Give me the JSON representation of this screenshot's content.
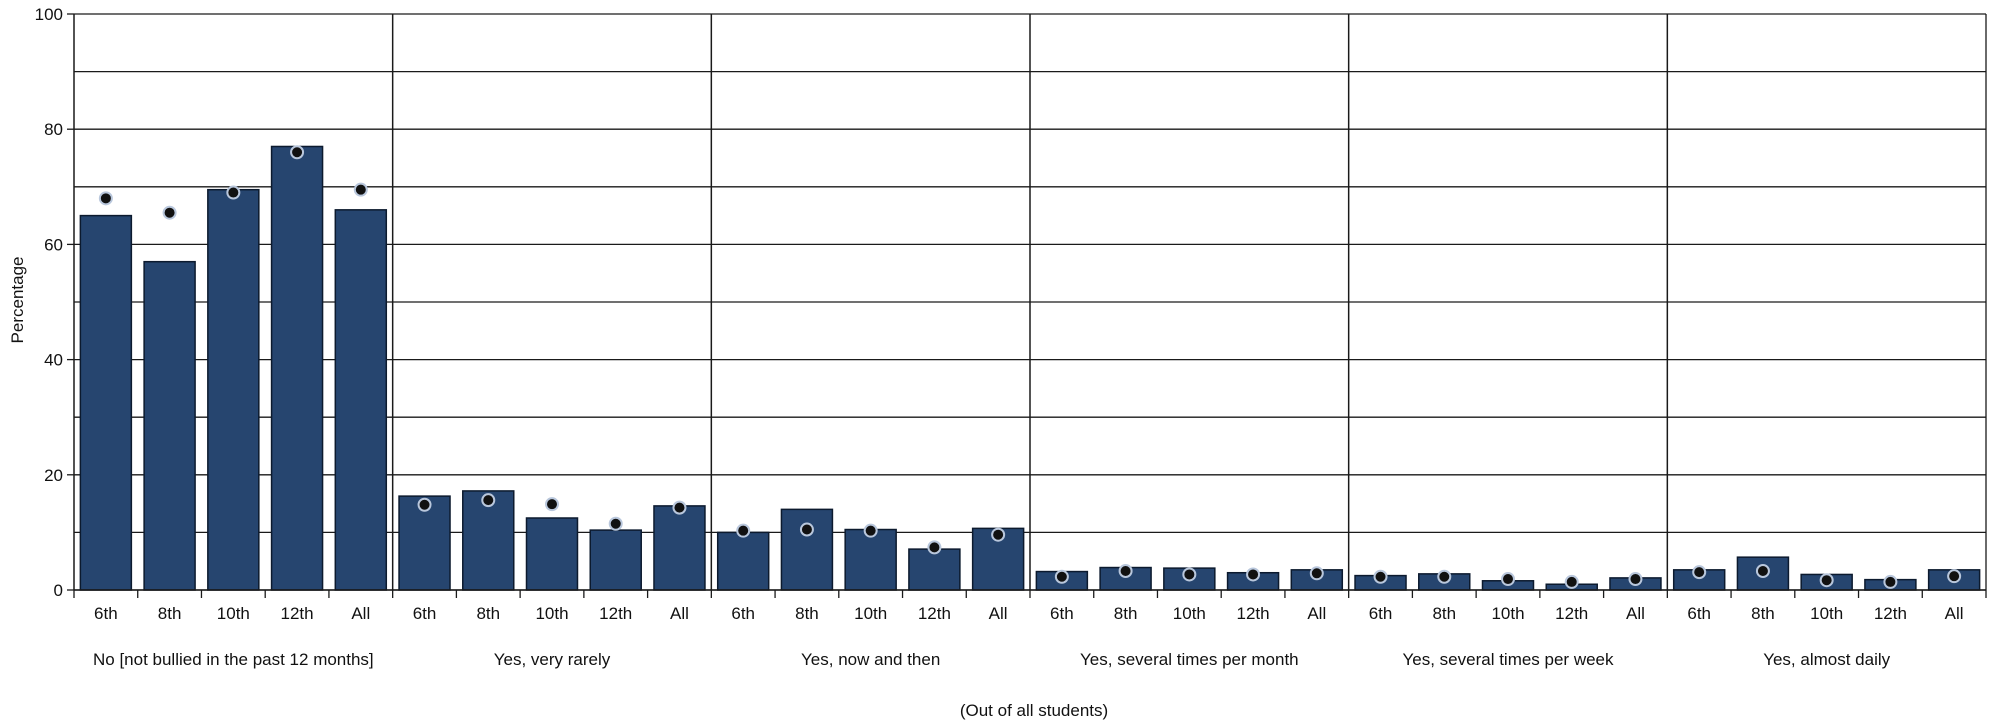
{
  "chart_data": {
    "type": "bar",
    "ylabel": "Percentage",
    "xlabel": "(Out of all students)",
    "ylim": [
      0,
      100
    ],
    "yticks": [
      0,
      20,
      40,
      60,
      80,
      100
    ],
    "grid": true,
    "colors": {
      "bar": "#26456f",
      "dot": "#111111",
      "dot_outline": "#b9c7dc"
    },
    "groups": [
      {
        "label": "No [not bullied in the past 12 months]",
        "categories": [
          "6th",
          "8th",
          "10th",
          "12th",
          "All"
        ],
        "bars": [
          65,
          57,
          69.5,
          77,
          66
        ],
        "dots": [
          68,
          65.5,
          69,
          76,
          69.5
        ]
      },
      {
        "label": "Yes, very rarely",
        "categories": [
          "6th",
          "8th",
          "10th",
          "12th",
          "All"
        ],
        "bars": [
          16.3,
          17.2,
          12.5,
          10.4,
          14.6
        ],
        "dots": [
          14.8,
          15.6,
          14.9,
          11.5,
          14.3
        ]
      },
      {
        "label": "Yes, now and then",
        "categories": [
          "6th",
          "8th",
          "10th",
          "12th",
          "All"
        ],
        "bars": [
          10,
          14,
          10.5,
          7.1,
          10.7
        ],
        "dots": [
          10.3,
          10.5,
          10.3,
          7.4,
          9.6
        ]
      },
      {
        "label": "Yes, several times per month",
        "categories": [
          "6th",
          "8th",
          "10th",
          "12th",
          "All"
        ],
        "bars": [
          3.2,
          3.9,
          3.8,
          3,
          3.5
        ],
        "dots": [
          2.3,
          3.3,
          2.7,
          2.7,
          2.9
        ]
      },
      {
        "label": "Yes, several times per week",
        "categories": [
          "6th",
          "8th",
          "10th",
          "12th",
          "All"
        ],
        "bars": [
          2.5,
          2.8,
          1.6,
          1,
          2.1
        ],
        "dots": [
          2.3,
          2.3,
          1.9,
          1.4,
          1.9
        ]
      },
      {
        "label": "Yes, almost daily",
        "categories": [
          "6th",
          "8th",
          "10th",
          "12th",
          "All"
        ],
        "bars": [
          3.5,
          5.7,
          2.7,
          1.8,
          3.5
        ],
        "dots": [
          3.1,
          3.3,
          1.7,
          1.4,
          2.4
        ]
      }
    ]
  }
}
